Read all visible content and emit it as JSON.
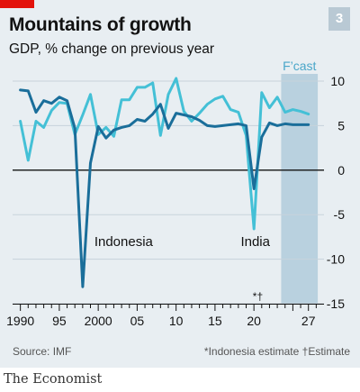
{
  "header": {
    "title": "Mountains of growth",
    "subtitle": "GDP, % change on previous year",
    "badge": "3"
  },
  "footer": {
    "source": "Source: IMF",
    "footnote": "*Indonesia estimate   †Estimate",
    "brand": "The Economist"
  },
  "chart_data": {
    "type": "line",
    "title": "Mountains of growth",
    "subtitle": "GDP, % change on previous year",
    "xlim": [
      1989,
      2029
    ],
    "ylim": [
      -15,
      10
    ],
    "y_ticks": [
      10,
      5,
      0,
      -5,
      -10,
      -15
    ],
    "y_tick_labels": [
      "10",
      "5",
      "0",
      "-5",
      "-10",
      "-15"
    ],
    "x_tick_labels": [
      {
        "x": 1990,
        "label": "1990"
      },
      {
        "x": 1995,
        "label": "95"
      },
      {
        "x": 2000,
        "label": "2000"
      },
      {
        "x": 2005,
        "label": "05"
      },
      {
        "x": 2010,
        "label": "10"
      },
      {
        "x": 2015,
        "label": "15"
      },
      {
        "x": 2020,
        "label": "20"
      },
      {
        "x": 2027,
        "label": "27"
      }
    ],
    "forecast": {
      "label": "F’cast",
      "from": 2023.5,
      "to": 2028.2
    },
    "marker": {
      "x": 2020.5,
      "label": "*†"
    },
    "series": [
      {
        "name": "Indonesia",
        "color": "#1a6e9a",
        "label_at": [
          1999.5,
          -8.5
        ],
        "points": [
          [
            1990,
            9.0
          ],
          [
            1991,
            8.9
          ],
          [
            1992,
            6.5
          ],
          [
            1993,
            7.8
          ],
          [
            1994,
            7.5
          ],
          [
            1995,
            8.2
          ],
          [
            1996,
            7.8
          ],
          [
            1997,
            4.7
          ],
          [
            1998,
            -13.1
          ],
          [
            1999,
            0.8
          ],
          [
            2000,
            4.9
          ],
          [
            2001,
            3.6
          ],
          [
            2002,
            4.5
          ],
          [
            2003,
            4.8
          ],
          [
            2004,
            5.0
          ],
          [
            2005,
            5.7
          ],
          [
            2006,
            5.5
          ],
          [
            2007,
            6.3
          ],
          [
            2008,
            7.4
          ],
          [
            2009,
            4.7
          ],
          [
            2010,
            6.4
          ],
          [
            2011,
            6.2
          ],
          [
            2012,
            6.0
          ],
          [
            2013,
            5.6
          ],
          [
            2014,
            5.0
          ],
          [
            2015,
            4.9
          ],
          [
            2016,
            5.0
          ],
          [
            2017,
            5.1
          ],
          [
            2018,
            5.2
          ],
          [
            2019,
            5.0
          ],
          [
            2020,
            -2.1
          ],
          [
            2021,
            3.7
          ],
          [
            2022,
            5.3
          ],
          [
            2023,
            5.0
          ],
          [
            2024,
            5.2
          ],
          [
            2025,
            5.1
          ],
          [
            2026,
            5.1
          ],
          [
            2027,
            5.1
          ]
        ]
      },
      {
        "name": "India",
        "color": "#44c0d6",
        "label_at": [
          2018.3,
          -8.5
        ],
        "points": [
          [
            1990,
            5.5
          ],
          [
            1991,
            1.1
          ],
          [
            1992,
            5.5
          ],
          [
            1993,
            4.8
          ],
          [
            1994,
            6.7
          ],
          [
            1995,
            7.6
          ],
          [
            1996,
            7.5
          ],
          [
            1997,
            4.0
          ],
          [
            1998,
            6.2
          ],
          [
            1999,
            8.5
          ],
          [
            2000,
            4.0
          ],
          [
            2001,
            4.8
          ],
          [
            2002,
            3.8
          ],
          [
            2003,
            7.9
          ],
          [
            2004,
            7.9
          ],
          [
            2005,
            9.3
          ],
          [
            2006,
            9.3
          ],
          [
            2007,
            9.8
          ],
          [
            2008,
            3.9
          ],
          [
            2009,
            8.5
          ],
          [
            2010,
            10.3
          ],
          [
            2011,
            6.6
          ],
          [
            2012,
            5.5
          ],
          [
            2013,
            6.4
          ],
          [
            2014,
            7.4
          ],
          [
            2015,
            8.0
          ],
          [
            2016,
            8.3
          ],
          [
            2017,
            6.8
          ],
          [
            2018,
            6.5
          ],
          [
            2019,
            3.9
          ],
          [
            2020,
            -6.6
          ],
          [
            2021,
            8.7
          ],
          [
            2022,
            7.0
          ],
          [
            2023,
            8.2
          ],
          [
            2024,
            6.5
          ],
          [
            2025,
            6.8
          ],
          [
            2026,
            6.6
          ],
          [
            2027,
            6.3
          ]
        ]
      }
    ]
  }
}
